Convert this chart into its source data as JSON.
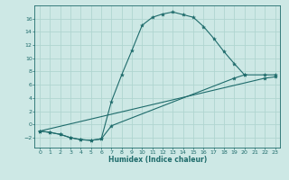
{
  "xlabel": "Humidex (Indice chaleur)",
  "xlim": [
    -0.5,
    23.5
  ],
  "ylim": [
    -3.5,
    18
  ],
  "xticks": [
    0,
    1,
    2,
    3,
    4,
    5,
    6,
    7,
    8,
    9,
    10,
    11,
    12,
    13,
    14,
    15,
    16,
    17,
    18,
    19,
    20,
    21,
    22,
    23
  ],
  "yticks": [
    -2,
    0,
    2,
    4,
    6,
    8,
    10,
    12,
    14,
    16
  ],
  "bg_color": "#cde8e5",
  "line_color": "#1e6b6b",
  "grid_color": "#b0d5d0",
  "curve1_x": [
    0,
    1,
    2,
    3,
    4,
    5,
    6,
    7,
    8,
    9,
    10,
    11,
    12,
    13,
    14,
    15,
    16,
    17,
    18,
    19,
    20
  ],
  "curve1_y": [
    -1.0,
    -1.2,
    -1.5,
    -2.0,
    -2.3,
    -2.4,
    -2.2,
    3.5,
    7.5,
    11.2,
    15.0,
    16.2,
    16.7,
    17.0,
    16.6,
    16.2,
    14.8,
    13.0,
    11.0,
    9.2,
    7.5
  ],
  "curve2_x": [
    0,
    1,
    2,
    3,
    4,
    5,
    6,
    7,
    19,
    20,
    22,
    23
  ],
  "curve2_y": [
    -1.0,
    -1.2,
    -1.5,
    -2.0,
    -2.3,
    -2.4,
    -2.2,
    -0.2,
    7.0,
    7.5,
    7.5,
    7.5
  ],
  "curve3_x": [
    0,
    22,
    23
  ],
  "curve3_y": [
    -1.0,
    7.0,
    7.2
  ]
}
